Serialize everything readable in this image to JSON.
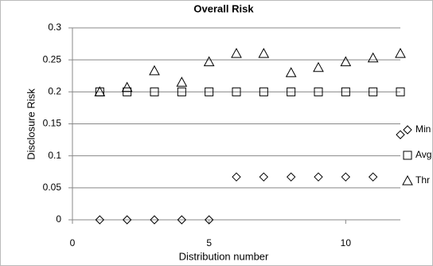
{
  "chart_data": {
    "type": "scatter",
    "title": "Overall Risk",
    "xlabel": "Distribution number",
    "ylabel": "Disclosure Risk",
    "xlim": [
      0,
      12
    ],
    "xticks": [
      0,
      5,
      10
    ],
    "ylim": [
      0,
      0.3
    ],
    "yticks": [
      0,
      0.05,
      0.1,
      0.15,
      0.2,
      0.25,
      0.3
    ],
    "grid": true,
    "legend": "right",
    "series": [
      {
        "name": "Min",
        "color": "#000000",
        "marker": "diamond",
        "x": [
          1,
          2,
          3,
          4,
          5,
          6,
          7,
          8,
          9,
          10,
          11,
          12
        ],
        "values": [
          0,
          0,
          0,
          0,
          0,
          0.067,
          0.067,
          0.067,
          0.067,
          0.067,
          0.067,
          0.133
        ]
      },
      {
        "name": "Avg",
        "color": "#000000",
        "marker": "square",
        "x": [
          1,
          2,
          3,
          4,
          5,
          6,
          7,
          8,
          9,
          10,
          11,
          12
        ],
        "values": [
          0.2,
          0.2,
          0.2,
          0.2,
          0.2,
          0.2,
          0.2,
          0.2,
          0.2,
          0.2,
          0.2,
          0.2
        ]
      },
      {
        "name": "Thr",
        "color": "#000000",
        "marker": "triangle",
        "x": [
          1,
          2,
          3,
          4,
          5,
          6,
          7,
          8,
          9,
          10,
          11,
          12
        ],
        "values": [
          0.2,
          0.207,
          0.233,
          0.215,
          0.247,
          0.26,
          0.26,
          0.23,
          0.238,
          0.247,
          0.253,
          0.26
        ]
      }
    ]
  }
}
